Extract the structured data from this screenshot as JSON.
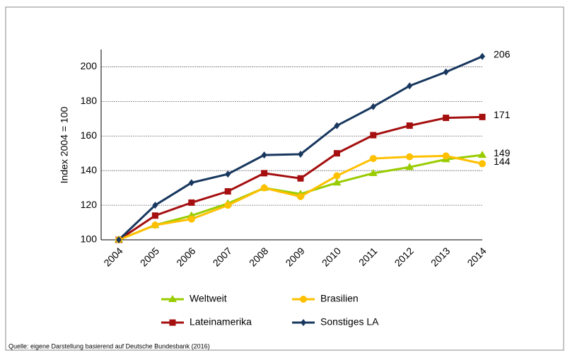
{
  "chart_data": {
    "type": "line",
    "y_label": "Index 2004 = 100",
    "source": "Quelle: eigene Darstellung basierend auf Deutsche Bundesbank (2016)",
    "categories": [
      "2004",
      "2005",
      "2006",
      "2007",
      "2008",
      "2009",
      "2010",
      "2011",
      "2012",
      "2013",
      "2014"
    ],
    "series": [
      {
        "name": "Weltweit",
        "color": "#99cc00",
        "marker": "triangle",
        "values": [
          100,
          108.5,
          114,
          121,
          130,
          126.5,
          133,
          138.5,
          142,
          146.5,
          149
        ]
      },
      {
        "name": "Lateinamerika",
        "color": "#a50f0f",
        "marker": "square",
        "values": [
          100,
          114,
          121.5,
          128,
          138.5,
          135.5,
          150,
          160.5,
          166,
          170.5,
          171
        ]
      },
      {
        "name": "Brasilien",
        "color": "#ffc000",
        "marker": "circle",
        "values": [
          100,
          108.5,
          112,
          120,
          130,
          125,
          137,
          147,
          148,
          148.5,
          144
        ]
      },
      {
        "name": "Sonstiges LA",
        "color": "#17375e",
        "marker": "diamond",
        "values": [
          100,
          120,
          133,
          138,
          149,
          149.5,
          166,
          177,
          189,
          197,
          206
        ]
      }
    ],
    "ylim": [
      100,
      210
    ],
    "yticks": [
      100,
      120,
      140,
      160,
      180,
      200
    ],
    "grid": true
  }
}
